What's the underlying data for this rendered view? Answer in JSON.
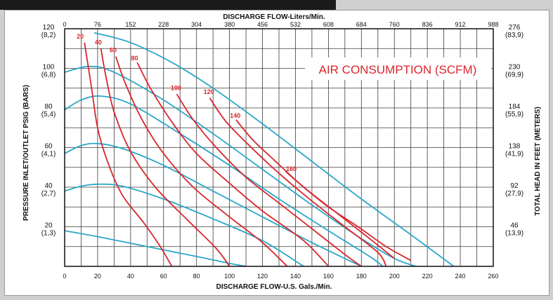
{
  "chart_data": {
    "type": "line",
    "title_top": "DISCHARGE FLOW-Liters/Min.",
    "title_bottom": "DISCHARGE FLOW-U.S. Gals./Min.",
    "ylabel_left": "PRESSURE INLET/OUTLET PSIG (BARS)",
    "ylabel_right": "TOTAL HEAD IN FEET (METERS)",
    "annotation": "AIR CONSUMPTION (SCFM)",
    "xlim": [
      0,
      260
    ],
    "ylim": [
      0,
      120
    ],
    "grid": true,
    "x_ticks_bottom": [
      "0",
      "20",
      "40",
      "60",
      "80",
      "100",
      "120",
      "140",
      "160",
      "180",
      "200",
      "220",
      "240",
      "260"
    ],
    "x_ticks_top": [
      "0",
      "76",
      "152",
      "228",
      "304",
      "380",
      "456",
      "532",
      "608",
      "684",
      "760",
      "836",
      "912",
      "988"
    ],
    "y_ticks_left": [
      {
        "value": 120,
        "psi": "120",
        "bar": "(8,2)"
      },
      {
        "value": 100,
        "psi": "100",
        "bar": "(6,8)"
      },
      {
        "value": 80,
        "psi": "80",
        "bar": "(5,4)"
      },
      {
        "value": 60,
        "psi": "60",
        "bar": "(4,1)"
      },
      {
        "value": 40,
        "psi": "40",
        "bar": "(2,7)"
      },
      {
        "value": 20,
        "psi": "20",
        "bar": "(1,3)"
      }
    ],
    "y_ticks_right": [
      {
        "value": 120,
        "ft": "276",
        "m": "(83,9)"
      },
      {
        "value": 100,
        "ft": "230",
        "m": "(69,9)"
      },
      {
        "value": 80,
        "ft": "184",
        "m": "(55,9)"
      },
      {
        "value": 60,
        "ft": "138",
        "m": "(41,9)"
      },
      {
        "value": 40,
        "ft": "92",
        "m": "(27,9)"
      },
      {
        "value": 20,
        "ft": "46",
        "m": "(13,9)"
      }
    ],
    "colors": {
      "pressure_curves": "#2aa7c9",
      "air_curves": "#d9262c",
      "grid": "#3a3a3a",
      "annotation": "#d9262c"
    },
    "pressure_series": [
      {
        "points": [
          [
            0,
            18
          ],
          [
            20,
            15
          ],
          [
            50,
            10
          ],
          [
            80,
            5
          ],
          [
            100,
            1.5
          ],
          [
            110,
            0
          ]
        ]
      },
      {
        "points": [
          [
            0,
            38
          ],
          [
            10,
            40.5
          ],
          [
            20,
            41.5
          ],
          [
            35,
            40.5
          ],
          [
            60,
            34
          ],
          [
            90,
            24
          ],
          [
            120,
            13
          ],
          [
            145,
            0
          ]
        ]
      },
      {
        "points": [
          [
            0,
            57
          ],
          [
            10,
            61
          ],
          [
            20,
            62
          ],
          [
            35,
            59.5
          ],
          [
            60,
            51
          ],
          [
            90,
            38
          ],
          [
            120,
            25
          ],
          [
            150,
            12
          ],
          [
            180,
            0
          ]
        ]
      },
      {
        "points": [
          [
            0,
            79
          ],
          [
            10,
            84
          ],
          [
            22,
            86
          ],
          [
            40,
            82
          ],
          [
            70,
            67
          ],
          [
            100,
            51
          ],
          [
            130,
            34
          ],
          [
            160,
            18
          ],
          [
            185,
            5
          ],
          [
            193,
            0
          ]
        ]
      },
      {
        "points": [
          [
            0,
            98
          ],
          [
            15,
            101
          ],
          [
            30,
            98
          ],
          [
            60,
            84
          ],
          [
            90,
            67
          ],
          [
            120,
            49
          ],
          [
            150,
            31
          ],
          [
            180,
            14
          ],
          [
            200,
            4
          ],
          [
            213,
            0
          ]
        ]
      },
      {
        "points": [
          [
            18,
            118
          ],
          [
            40,
            113
          ],
          [
            65,
            103
          ],
          [
            90,
            90
          ],
          [
            120,
            72
          ],
          [
            150,
            53
          ],
          [
            180,
            34
          ],
          [
            210,
            16
          ],
          [
            236,
            0
          ]
        ]
      }
    ],
    "air_series": [
      {
        "name": "20",
        "label_at": [
          9,
          114
        ],
        "points": [
          [
            12,
            113
          ],
          [
            16,
            92
          ],
          [
            20,
            70
          ],
          [
            26,
            53
          ],
          [
            35,
            36
          ],
          [
            48,
            22
          ],
          [
            58,
            10
          ],
          [
            65,
            0
          ]
        ]
      },
      {
        "name": "40",
        "label_at": [
          20,
          111
        ],
        "points": [
          [
            22,
            110
          ],
          [
            25,
            96
          ],
          [
            30,
            78
          ],
          [
            40,
            58
          ],
          [
            55,
            40
          ],
          [
            75,
            23
          ],
          [
            92,
            9
          ],
          [
            100,
            0
          ]
        ]
      },
      {
        "name": "60",
        "label_at": [
          29,
          107
        ],
        "points": [
          [
            31,
            106
          ],
          [
            37,
            92
          ],
          [
            47,
            74
          ],
          [
            60,
            57
          ],
          [
            78,
            40
          ],
          [
            100,
            25
          ],
          [
            120,
            12
          ],
          [
            135,
            0
          ]
        ]
      },
      {
        "name": "80",
        "label_at": [
          42,
          103
        ],
        "points": [
          [
            44,
            103
          ],
          [
            52,
            90
          ],
          [
            65,
            73
          ],
          [
            80,
            57
          ],
          [
            100,
            42
          ],
          [
            120,
            28
          ],
          [
            145,
            13
          ],
          [
            160,
            0
          ]
        ]
      },
      {
        "name": "100",
        "label_at": [
          66,
          88
        ],
        "points": [
          [
            68,
            87
          ],
          [
            78,
            74
          ],
          [
            92,
            60
          ],
          [
            110,
            45
          ],
          [
            130,
            32
          ],
          [
            150,
            19
          ],
          [
            170,
            6
          ],
          [
            180,
            0
          ]
        ]
      },
      {
        "name": "120",
        "label_at": [
          86,
          86
        ],
        "points": [
          [
            88,
            85
          ],
          [
            98,
            73
          ],
          [
            112,
            61
          ],
          [
            130,
            47
          ],
          [
            150,
            33
          ],
          [
            170,
            20
          ],
          [
            190,
            7
          ],
          [
            195,
            0
          ]
        ]
      },
      {
        "name": "140",
        "label_at": [
          102,
          74
        ],
        "points": [
          [
            104,
            74
          ],
          [
            114,
            64
          ],
          [
            128,
            53
          ],
          [
            145,
            40
          ],
          [
            165,
            27
          ],
          [
            185,
            14
          ],
          [
            200,
            4
          ]
        ]
      },
      {
        "name": "160",
        "label_at": [
          136,
          47
        ],
        "points": [
          [
            134,
            48
          ],
          [
            145,
            40
          ],
          [
            160,
            30
          ],
          [
            178,
            20
          ],
          [
            195,
            10
          ],
          [
            210,
            3
          ]
        ]
      }
    ]
  }
}
